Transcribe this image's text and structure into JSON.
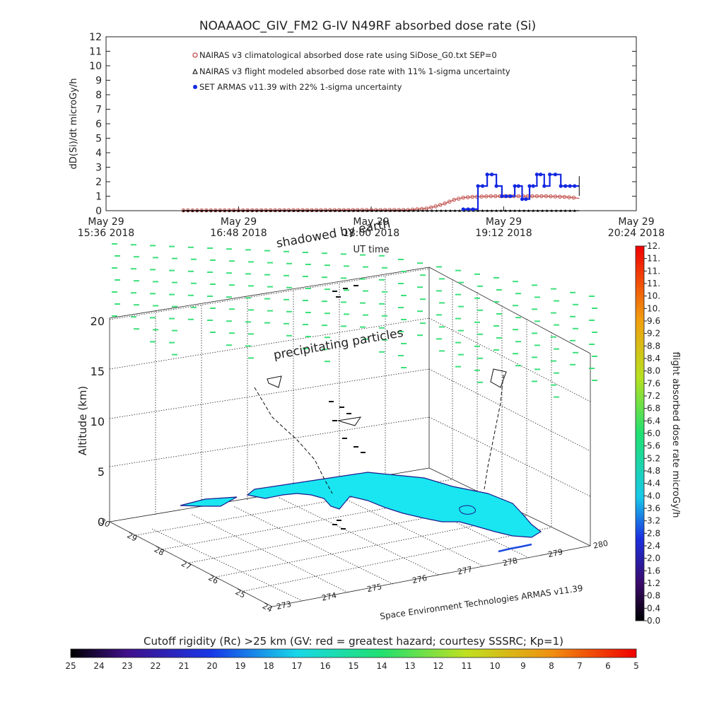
{
  "title": "NOAAAOC_GIV_FM2 G-IV    N49RF  absorbed dose rate (Si)",
  "colors": {
    "climatological": "#c0504d",
    "modeled": "#000000",
    "armas": "#1428e0",
    "land": "#19e6f0",
    "coast": "#1a1a8c",
    "profile_marks": "#3ce07a"
  },
  "chart_data": [
    {
      "id": "timeseries",
      "type": "line",
      "ylabel": "dD(Si)/dt microGy/h",
      "xlabel": "UT time",
      "ylim": [
        0,
        12
      ],
      "yticks": [
        "0",
        "1",
        "2",
        "3",
        "4",
        "5",
        "6",
        "7",
        "8",
        "9",
        "10",
        "11",
        "12"
      ],
      "xtick_labels": [
        {
          "l1": "May 29",
          "l2": "15:36 2018"
        },
        {
          "l1": "May 29",
          "l2": "16:48 2018"
        },
        {
          "l1": "May 29",
          "l2": "18:00 2018"
        },
        {
          "l1": "May 29",
          "l2": "19:12 2018"
        },
        {
          "l1": "May 29",
          "l2": "20:24 2018"
        }
      ],
      "xlim_minutes": [
        936,
        1224
      ],
      "legend": [
        "NAIRAS v3 climatological absorbed dose rate using SiDose_G0.txt SEP=0",
        "NAIRAS v3 flight modeled absorbed dose rate with 11% 1-sigma uncertainty",
        "SET ARMAS v11.39 with 22% 1-sigma uncertainty"
      ],
      "series": [
        {
          "name": "NAIRAS v3 climatological absorbed dose rate using SiDose_G0.txt SEP=0",
          "points": [
            [
              978,
              0.02
            ],
            [
              1100,
              0.05
            ],
            [
              1110,
              0.15
            ],
            [
              1115,
              0.3
            ],
            [
              1120,
              0.5
            ],
            [
              1125,
              0.75
            ],
            [
              1130,
              0.9
            ],
            [
              1135,
              0.95
            ],
            [
              1145,
              1.0
            ],
            [
              1160,
              1.0
            ],
            [
              1175,
              1.0
            ],
            [
              1185,
              0.95
            ],
            [
              1190,
              0.9
            ],
            [
              1193,
              0.85
            ]
          ]
        },
        {
          "name": "NAIRAS v3 flight modeled absorbed dose rate with 11% 1-sigma uncertainty",
          "points": [
            [
              978,
              0.0
            ],
            [
              1193,
              0.0
            ]
          ]
        },
        {
          "name": "SET ARMAS v11.39 with 22% 1-sigma uncertainty",
          "points": [
            [
              1130,
              0.1
            ],
            [
              1138,
              0.1
            ],
            [
              1138,
              1.7
            ],
            [
              1143,
              1.7
            ],
            [
              1143,
              2.5
            ],
            [
              1148,
              2.5
            ],
            [
              1148,
              1.7
            ],
            [
              1151,
              1.7
            ],
            [
              1151,
              1.0
            ],
            [
              1158,
              1.0
            ],
            [
              1158,
              1.7
            ],
            [
              1162,
              1.7
            ],
            [
              1162,
              0.8
            ],
            [
              1166,
              0.8
            ],
            [
              1166,
              1.7
            ],
            [
              1170,
              1.7
            ],
            [
              1170,
              2.5
            ],
            [
              1174,
              2.5
            ],
            [
              1174,
              1.7
            ],
            [
              1177,
              1.7
            ],
            [
              1177,
              2.5
            ],
            [
              1183,
              2.5
            ],
            [
              1183,
              1.7
            ],
            [
              1193,
              1.7
            ]
          ]
        }
      ]
    },
    {
      "id": "profile3d",
      "type": "scatter",
      "zlabel": "Altitude (km)",
      "zticks": [
        "0",
        "5",
        "10",
        "15",
        "20"
      ],
      "lat_ticks": [
        "30",
        "29",
        "28",
        "27",
        "26",
        "25",
        "24"
      ],
      "lon_ticks": [
        "273",
        "274",
        "275",
        "276",
        "277",
        "278",
        "279",
        "280"
      ],
      "annotations": [
        "shadowed by earth",
        "precipitating particles"
      ],
      "footer": "Space Environment Technologies ARMAS v11.39"
    }
  ],
  "colorbar": {
    "title": "flight absorbed dose rate microGy/h",
    "ticks": [
      "0.0",
      "0.4",
      "0.8",
      "1.2",
      "1.6",
      "2.0",
      "2.4",
      "2.8",
      "3.2",
      "3.6",
      "4.0",
      "4.4",
      "4.8",
      "5.2",
      "5.6",
      "6.0",
      "6.4",
      "6.8",
      "7.2",
      "7.6",
      "8.0",
      "8.4",
      "8.8",
      "9.2",
      "9.6",
      "10.",
      "10.",
      "11.",
      "11.",
      "11.",
      "12."
    ]
  },
  "rigidity_bar": {
    "title": "Cutoff rigidity (Rc) >25 km (GV: red = greatest hazard; courtesy SSSRC; Kp=1)",
    "ticks": [
      "25",
      "24",
      "23",
      "22",
      "21",
      "20",
      "19",
      "18",
      "17",
      "16",
      "15",
      "14",
      "13",
      "12",
      "11",
      "10",
      "9",
      "8",
      "7",
      "6",
      "5"
    ]
  }
}
